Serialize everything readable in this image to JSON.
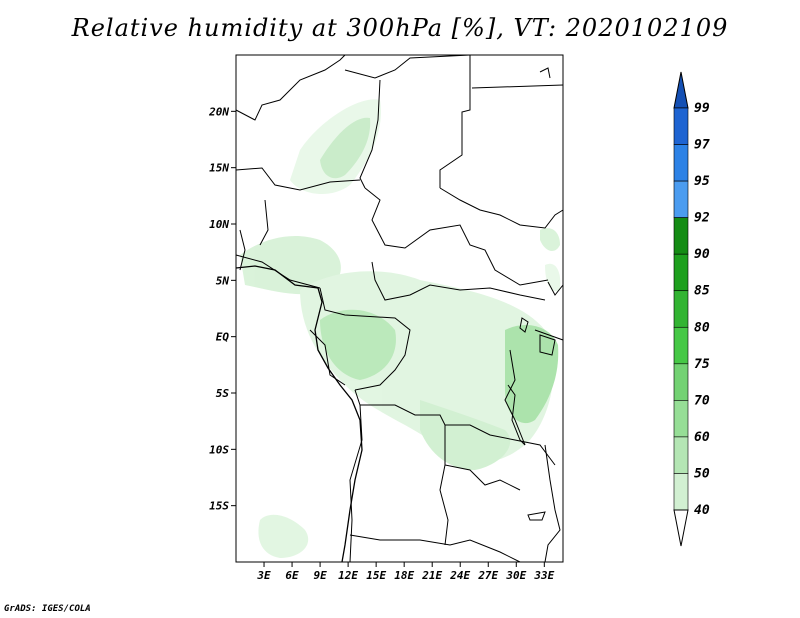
{
  "title": "Relative humidity at 300hPa [%], VT: 2020102109",
  "credit": "GrADS: IGES/COLA",
  "map": {
    "lat_labels": [
      "20N",
      "15N",
      "10N",
      "5N",
      "EQ",
      "5S",
      "10S",
      "15S"
    ],
    "lat_values": [
      20,
      15,
      10,
      5,
      0,
      -5,
      -10,
      -15
    ],
    "lon_labels": [
      "3E",
      "6E",
      "9E",
      "12E",
      "15E",
      "18E",
      "21E",
      "24E",
      "27E",
      "30E",
      "33E"
    ],
    "lon_values": [
      3,
      6,
      9,
      12,
      15,
      18,
      21,
      24,
      27,
      30,
      33
    ],
    "lat_range": [
      -20,
      25
    ],
    "lon_range": [
      0,
      35
    ]
  },
  "colorbar": {
    "labels": [
      "99",
      "97",
      "95",
      "92",
      "90",
      "85",
      "80",
      "75",
      "70",
      "60",
      "50",
      "40"
    ],
    "colors": [
      "#1e64d2",
      "#2d82e6",
      "#4b9cf0",
      "#148c14",
      "#1ea01e",
      "#32b432",
      "#46c846",
      "#73d273",
      "#96de96",
      "#b4e6b4",
      "#d2f0d2",
      "#ebfaeb",
      "#ffffff"
    ],
    "top_color": "#1450b4"
  }
}
